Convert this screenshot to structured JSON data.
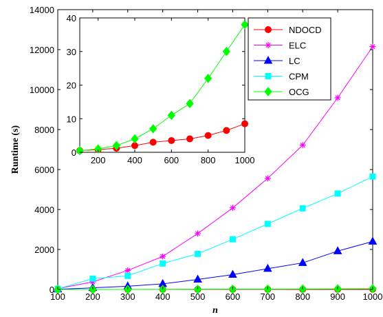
{
  "chart_data": [
    {
      "type": "line",
      "title": "",
      "xlabel": "n",
      "ylabel": "Runtime (s)",
      "xlim": [
        100,
        1000
      ],
      "ylim": [
        0,
        14000
      ],
      "xticks": [
        100,
        200,
        300,
        400,
        500,
        600,
        700,
        800,
        900,
        1000
      ],
      "yticks": [
        0,
        2000,
        4000,
        6000,
        8000,
        10000,
        12000,
        14000
      ],
      "grid": false,
      "legend_position": "top-right",
      "x": [
        100,
        200,
        300,
        400,
        500,
        600,
        700,
        800,
        900,
        1000
      ],
      "series": [
        {
          "name": "NDOCD",
          "color": "#ff0000",
          "marker": "circle",
          "values": [
            0.5,
            0.8,
            1.2,
            2.0,
            3.0,
            3.5,
            4.0,
            5.0,
            6.5,
            8.5
          ]
        },
        {
          "name": "ELC",
          "color": "#ff00ff",
          "marker": "star",
          "values": [
            40,
            380,
            950,
            1650,
            2800,
            4080,
            5560,
            7220,
            9590,
            12150
          ]
        },
        {
          "name": "LC",
          "color": "#0000ff",
          "marker": "triangle",
          "values": [
            10,
            80,
            160,
            280,
            500,
            740,
            1040,
            1330,
            1920,
            2400
          ]
        },
        {
          "name": "CPM",
          "color": "#00ffff",
          "marker": "square",
          "values": [
            30,
            540,
            680,
            1300,
            1780,
            2510,
            3280,
            4060,
            4800,
            5650
          ]
        },
        {
          "name": "OCG",
          "color": "#00ff00",
          "marker": "diamond",
          "values": [
            0.5,
            1.0,
            2.0,
            4.0,
            7.0,
            11.0,
            14.5,
            22.0,
            30.0,
            38.0
          ]
        }
      ]
    },
    {
      "type": "line",
      "title": "",
      "xlabel": "",
      "ylabel": "",
      "xlim": [
        100,
        1000
      ],
      "ylim": [
        0,
        40
      ],
      "xticks": [
        200,
        400,
        600,
        800,
        1000
      ],
      "yticks": [
        0,
        10,
        20,
        30,
        40
      ],
      "grid": false,
      "x": [
        100,
        200,
        300,
        400,
        500,
        600,
        700,
        800,
        900,
        1000
      ],
      "series": [
        {
          "name": "NDOCD",
          "color": "#ff0000",
          "marker": "circle",
          "values": [
            0.5,
            0.8,
            1.2,
            2.0,
            3.0,
            3.5,
            4.0,
            5.0,
            6.5,
            8.5
          ]
        },
        {
          "name": "OCG",
          "color": "#00ff00",
          "marker": "diamond",
          "values": [
            0.5,
            1.0,
            2.0,
            4.0,
            7.0,
            11.0,
            14.5,
            22.0,
            30.0,
            38.0
          ]
        }
      ]
    }
  ]
}
